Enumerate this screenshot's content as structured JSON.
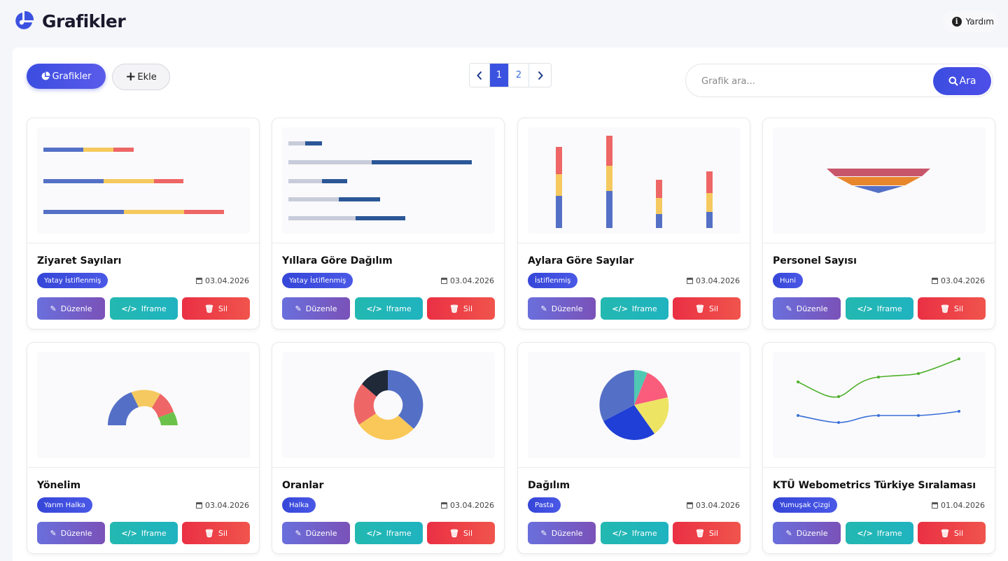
{
  "header": {
    "title": "Grafikler",
    "help_label": "Yardım"
  },
  "toolbar": {
    "primary_label": "Grafikler",
    "add_label": "Ekle",
    "pages": [
      "1",
      "2"
    ],
    "active_page": "1",
    "search_placeholder": "Grafik ara...",
    "search_button": "Ara"
  },
  "colors": {
    "accent": "#3b4de0",
    "edit": "#6a6fdc",
    "iframe": "#23b8b0",
    "delete": "#ea3044"
  },
  "actions": {
    "edit": "Düzenle",
    "iframe": "Iframe",
    "delete": "Sil"
  },
  "cards": [
    {
      "title": "Ziyaret Sayıları",
      "type": "Yatay İstiflenmiş",
      "date": "03.04.2026",
      "thumb": "stacked-horizontal-bar-thumb"
    },
    {
      "title": "Yıllara Göre Dağılım",
      "type": "Yatay İstiflenmiş",
      "date": "03.04.2026",
      "thumb": "horizontal-bar-thumb"
    },
    {
      "title": "Aylara Göre Sayılar",
      "type": "İstiflenmiş",
      "date": "03.04.2026",
      "thumb": "stacked-bar-thumb"
    },
    {
      "title": "Personel Sayısı",
      "type": "Huni",
      "date": "03.04.2026",
      "thumb": "funnel-thumb"
    },
    {
      "title": "Yönelim",
      "type": "Yarım Halka",
      "date": "03.04.2026",
      "thumb": "half-donut-thumb"
    },
    {
      "title": "Oranlar",
      "type": "Halka",
      "date": "03.04.2026",
      "thumb": "donut-thumb"
    },
    {
      "title": "Dağılım",
      "type": "Pasta",
      "date": "03.04.2026",
      "thumb": "pie-thumb"
    },
    {
      "title": "KTÜ Webometrics Türkiye Sıralaması",
      "type": "Yumuşak Çizgi",
      "date": "01.04.2026",
      "thumb": "smooth-line-thumb"
    }
  ]
}
